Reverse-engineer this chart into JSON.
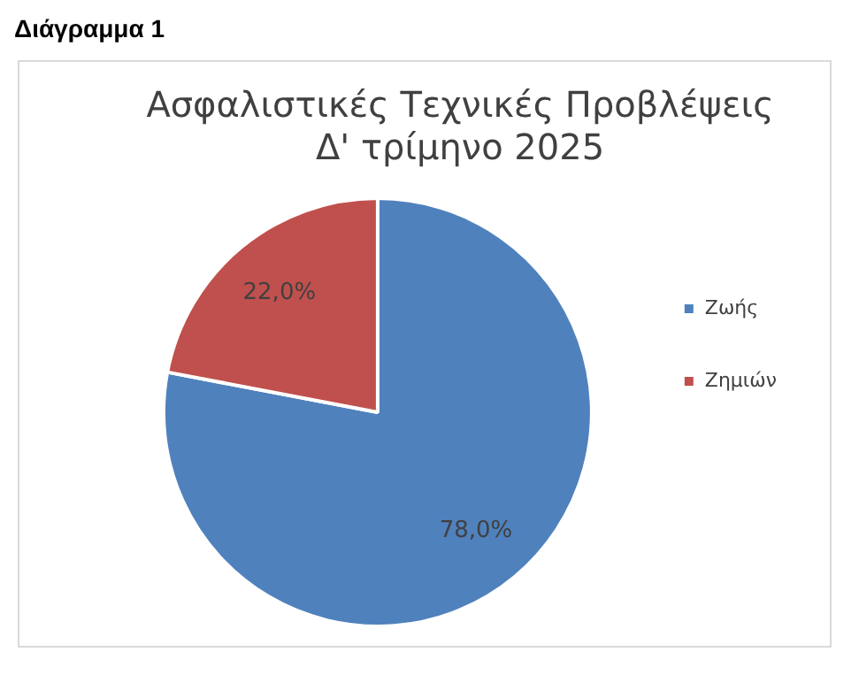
{
  "chart_data": {
    "type": "pie",
    "title": [
      "Ασφαλιστικές Τεχνικές Προβλέψεις",
      "Δ' τρίμηνο 2025"
    ],
    "annotations": [
      "Διάγραμμα 1"
    ],
    "categories": [
      "Ζωής",
      "Ζημιών"
    ],
    "values": [
      78,
      22
    ],
    "colors": [
      "#4f81bd",
      "#c0504d"
    ],
    "value_labels": [
      "78,0%",
      "22,0%"
    ],
    "legend": "right"
  }
}
